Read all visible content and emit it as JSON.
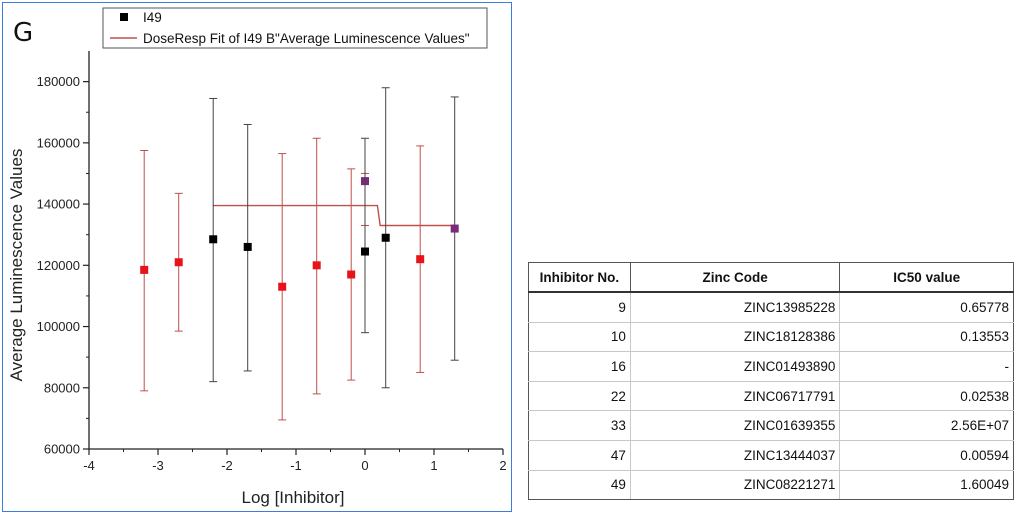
{
  "panel_label": "G",
  "chart_data": {
    "type": "scatter",
    "xlabel": "Log [Inhibitor]",
    "ylabel": "Average Luminescence Values",
    "xlim": [
      -4,
      2
    ],
    "ylim": [
      60000,
      190000
    ],
    "x_ticks": [
      -4,
      -3,
      -2,
      -1,
      0,
      1,
      2
    ],
    "y_ticks": [
      60000,
      80000,
      100000,
      120000,
      140000,
      160000,
      180000
    ],
    "legend": {
      "position": "top",
      "entries": [
        {
          "label": "I49",
          "marker": "square",
          "color": "#000000"
        },
        {
          "label": "DoseResp Fit of I49 B\"Average Luminescence Values\"",
          "marker": "line",
          "color": "#c0504d"
        }
      ]
    },
    "points": [
      {
        "x": -3.2,
        "y": 118500,
        "err_low": 79000,
        "err_high": 157500,
        "color": "#e8121a",
        "bar_color": "#c0504d"
      },
      {
        "x": -2.7,
        "y": 121000,
        "err_low": 98500,
        "err_high": 143500,
        "color": "#e8121a",
        "bar_color": "#c0504d"
      },
      {
        "x": -2.2,
        "y": 128500,
        "err_low": 82000,
        "err_high": 174500,
        "color": "#000000",
        "bar_color": "#444444"
      },
      {
        "x": -1.7,
        "y": 126000,
        "err_low": 85500,
        "err_high": 166000,
        "color": "#000000",
        "bar_color": "#444444"
      },
      {
        "x": -1.2,
        "y": 113000,
        "err_low": 69500,
        "err_high": 156500,
        "color": "#e8121a",
        "bar_color": "#c0504d"
      },
      {
        "x": -0.7,
        "y": 120000,
        "err_low": 78000,
        "err_high": 161500,
        "color": "#e8121a",
        "bar_color": "#c0504d"
      },
      {
        "x": -0.2,
        "y": 117000,
        "err_low": 82500,
        "err_high": 151500,
        "color": "#e8121a",
        "bar_color": "#c0504d"
      },
      {
        "x": 0.0,
        "y": 147500,
        "err_low": 133000,
        "err_high": 150000,
        "color": "#7a2a7a",
        "bar_color": "#c0504d"
      },
      {
        "x": 0.0,
        "y": 124500,
        "err_low": 98000,
        "err_high": 161500,
        "color": "#000000",
        "bar_color": "#444444"
      },
      {
        "x": 0.3,
        "y": 129000,
        "err_low": 80000,
        "err_high": 178000,
        "color": "#000000",
        "bar_color": "#444444"
      },
      {
        "x": 0.8,
        "y": 122000,
        "err_low": 85000,
        "err_high": 159000,
        "color": "#e8121a",
        "bar_color": "#c0504d"
      },
      {
        "x": 1.3,
        "y": 132000,
        "err_low": 89000,
        "err_high": 175000,
        "color": "#7a2a7a",
        "bar_color": "#444444"
      }
    ],
    "fit_line": {
      "color": "#c0504d",
      "points": [
        [
          -2.2,
          139500
        ],
        [
          0.18,
          139500
        ],
        [
          0.22,
          133000
        ],
        [
          1.3,
          133000
        ]
      ]
    }
  },
  "table": {
    "headers": [
      "Inhibitor No.",
      "Zinc Code",
      "IC50 value"
    ],
    "rows": [
      [
        "9",
        "ZINC13985228",
        "0.65778"
      ],
      [
        "10",
        "ZINC18128386",
        "0.13553"
      ],
      [
        "16",
        "ZINC01493890",
        "-"
      ],
      [
        "22",
        "ZINC06717791",
        "0.02538"
      ],
      [
        "33",
        "ZINC01639355",
        "2.56E+07"
      ],
      [
        "47",
        "ZINC13444037",
        "0.00594"
      ],
      [
        "49",
        "ZINC08221271",
        "1.60049"
      ]
    ]
  }
}
